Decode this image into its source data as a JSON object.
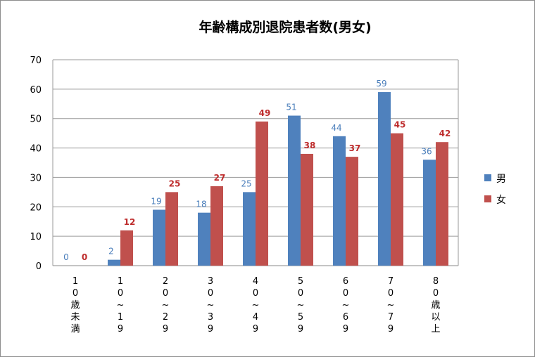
{
  "chart_data": {
    "type": "bar",
    "title": "年齢構成別退院患者数(男女)",
    "categories": [
      [
        "1",
        "0",
        "歳",
        "未",
        "満"
      ],
      [
        "1",
        "0",
        "~",
        "1",
        "9"
      ],
      [
        "2",
        "0",
        "~",
        "2",
        "9"
      ],
      [
        "3",
        "0",
        "~",
        "3",
        "9"
      ],
      [
        "4",
        "0",
        "~",
        "4",
        "9"
      ],
      [
        "5",
        "0",
        "~",
        "5",
        "9"
      ],
      [
        "6",
        "0",
        "~",
        "6",
        "9"
      ],
      [
        "7",
        "0",
        "~",
        "7",
        "9"
      ],
      [
        "8",
        "0",
        "歳",
        "以",
        "上"
      ]
    ],
    "series": [
      {
        "name": "男",
        "color": "#4f81bd",
        "values": [
          0,
          2,
          19,
          18,
          25,
          51,
          44,
          59,
          36
        ]
      },
      {
        "name": "女",
        "color": "#c0504d",
        "values": [
          0,
          12,
          25,
          27,
          49,
          38,
          37,
          45,
          42
        ]
      }
    ],
    "ylim": [
      0,
      70
    ],
    "yticks": [
      0,
      10,
      20,
      30,
      40,
      50,
      60,
      70
    ],
    "grid": true,
    "legend_position": "right"
  }
}
